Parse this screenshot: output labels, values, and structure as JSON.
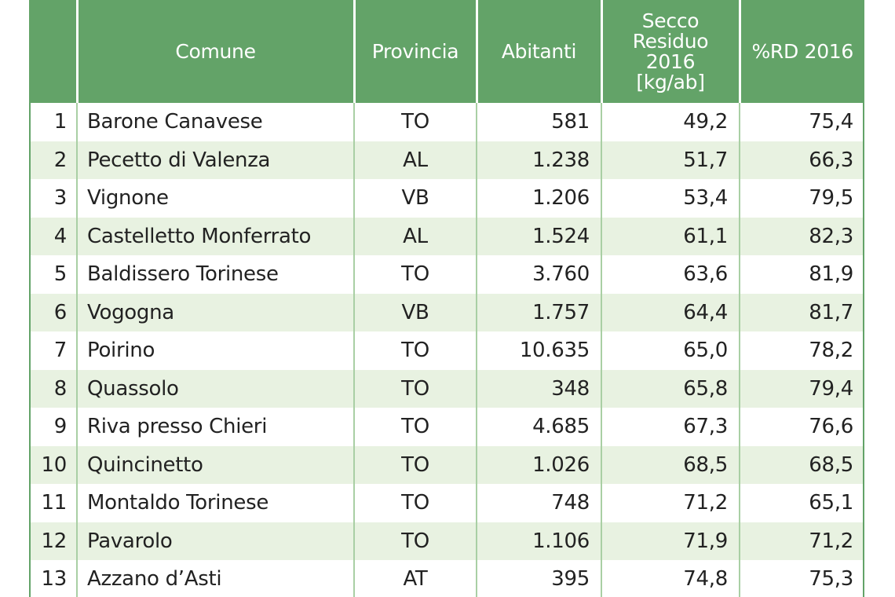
{
  "table": {
    "headers": {
      "index": "",
      "comune": "Comune",
      "provincia": "Provincia",
      "abitanti": "Abitanti",
      "secco_lines": [
        "Secco",
        "Residuo",
        "2016",
        "[kg/ab]"
      ],
      "rd": "%RD 2016"
    },
    "rows": [
      {
        "n": "1",
        "comune": "Barone Canavese",
        "provincia": "TO",
        "abitanti": "581",
        "secco": "49,2",
        "rd": "75,4"
      },
      {
        "n": "2",
        "comune": "Pecetto di Valenza",
        "provincia": "AL",
        "abitanti": "1.238",
        "secco": "51,7",
        "rd": "66,3"
      },
      {
        "n": "3",
        "comune": "Vignone",
        "provincia": "VB",
        "abitanti": "1.206",
        "secco": "53,4",
        "rd": "79,5"
      },
      {
        "n": "4",
        "comune": "Castelletto Monferrato",
        "provincia": "AL",
        "abitanti": "1.524",
        "secco": "61,1",
        "rd": "82,3"
      },
      {
        "n": "5",
        "comune": "Baldissero Torinese",
        "provincia": "TO",
        "abitanti": "3.760",
        "secco": "63,6",
        "rd": "81,9"
      },
      {
        "n": "6",
        "comune": "Vogogna",
        "provincia": "VB",
        "abitanti": "1.757",
        "secco": "64,4",
        "rd": "81,7"
      },
      {
        "n": "7",
        "comune": "Poirino",
        "provincia": "TO",
        "abitanti": "10.635",
        "secco": "65,0",
        "rd": "78,2"
      },
      {
        "n": "8",
        "comune": "Quassolo",
        "provincia": "TO",
        "abitanti": "348",
        "secco": "65,8",
        "rd": "79,4"
      },
      {
        "n": "9",
        "comune": "Riva presso Chieri",
        "provincia": "TO",
        "abitanti": "4.685",
        "secco": "67,3",
        "rd": "76,6"
      },
      {
        "n": "10",
        "comune": "Quincinetto",
        "provincia": "TO",
        "abitanti": "1.026",
        "secco": "68,5",
        "rd": "68,5"
      },
      {
        "n": "11",
        "comune": "Montaldo Torinese",
        "provincia": "TO",
        "abitanti": "748",
        "secco": "71,2",
        "rd": "65,1"
      },
      {
        "n": "12",
        "comune": "Pavarolo",
        "provincia": "TO",
        "abitanti": "1.106",
        "secco": "71,9",
        "rd": "71,2"
      },
      {
        "n": "13",
        "comune": "Azzano d’Asti",
        "provincia": "AT",
        "abitanti": "395",
        "secco": "74,8",
        "rd": "75,3"
      }
    ]
  },
  "colors": {
    "header_bg": "#63a368",
    "header_text": "#ffffff",
    "row_stripe": "#e8f2e1",
    "row_plain": "#ffffff",
    "body_text": "#222222"
  }
}
